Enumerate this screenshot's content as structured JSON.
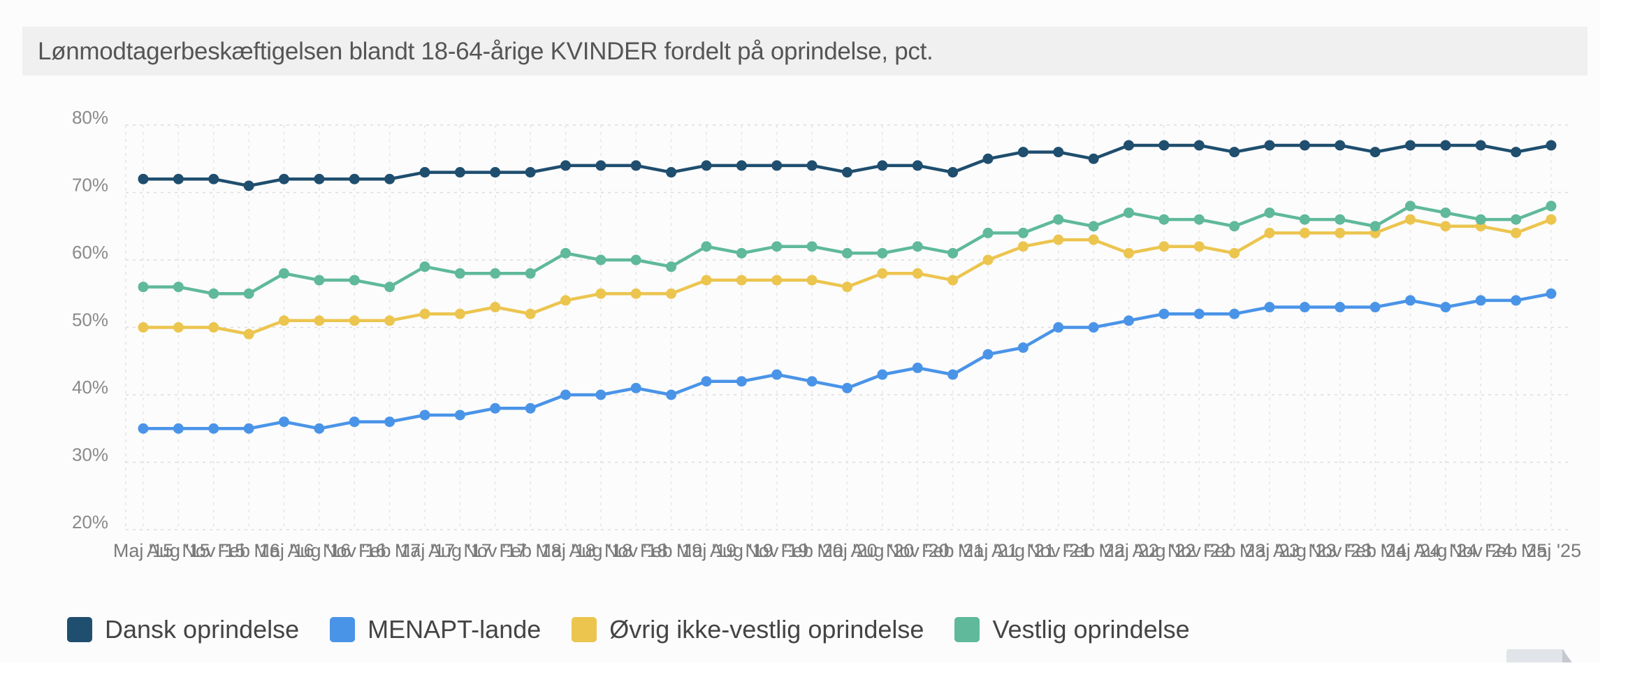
{
  "title": "Lønmodtagerbeskæftigelsen blandt 18-64-årige KVINDER fordelt på oprindelse, pct.",
  "chart_data": {
    "type": "line",
    "title": "Lønmodtagerbeskæftigelsen blandt 18-64-årige KVINDER fordelt på oprindelse, pct.",
    "xlabel": "",
    "ylabel": "",
    "ylim": [
      20,
      80
    ],
    "y_ticks": [
      "20%",
      "30%",
      "40%",
      "50%",
      "60%",
      "70%",
      "80%"
    ],
    "y_tick_values": [
      20,
      30,
      40,
      50,
      60,
      70,
      80
    ],
    "grid": true,
    "legend_position": "bottom-left",
    "categories": [
      "Maj '15",
      "Aug '15",
      "Nov '15",
      "Feb '16",
      "Maj '16",
      "Aug '16",
      "Nov '16",
      "Feb '17",
      "Maj '17",
      "Aug '17",
      "Nov '17",
      "Feb '18",
      "Maj '18",
      "Aug '18",
      "Nov '18",
      "Feb '19",
      "Maj '19",
      "Aug '19",
      "Nov '19",
      "Feb '20",
      "Maj '20",
      "Aug '20",
      "Nov '20",
      "Feb '21",
      "Maj '21",
      "Aug '21",
      "Nov '21",
      "Feb '22",
      "Maj '22",
      "Aug '22",
      "Nov '22",
      "Feb '23",
      "Maj '23",
      "Aug '23",
      "Nov '23",
      "Feb '24",
      "Maj '24",
      "Aug '24",
      "Nov '24",
      "Feb '25",
      "Maj '25"
    ],
    "series": [
      {
        "name": "Dansk oprindelse",
        "color": "#1f4e6e",
        "values": [
          72,
          72,
          72,
          71,
          72,
          72,
          72,
          72,
          73,
          73,
          73,
          73,
          74,
          74,
          74,
          73,
          74,
          74,
          74,
          74,
          73,
          74,
          74,
          73,
          75,
          76,
          76,
          75,
          77,
          77,
          77,
          76,
          77,
          77,
          77,
          76,
          77,
          77,
          77,
          76,
          77
        ]
      },
      {
        "name": "MENAPT-lande",
        "color": "#4a94e8",
        "values": [
          35,
          35,
          35,
          35,
          36,
          35,
          36,
          36,
          37,
          37,
          38,
          38,
          40,
          40,
          41,
          40,
          42,
          42,
          43,
          42,
          41,
          43,
          44,
          43,
          46,
          47,
          50,
          50,
          51,
          52,
          52,
          52,
          53,
          53,
          53,
          53,
          54,
          53,
          54,
          54,
          55
        ]
      },
      {
        "name": "Øvrig ikke-vestlig oprindelse",
        "color": "#ecc54f",
        "values": [
          50,
          50,
          50,
          49,
          51,
          51,
          51,
          51,
          52,
          52,
          53,
          52,
          54,
          55,
          55,
          55,
          57,
          57,
          57,
          57,
          56,
          58,
          58,
          57,
          60,
          62,
          63,
          63,
          61,
          62,
          62,
          61,
          64,
          64,
          64,
          64,
          66,
          65,
          65,
          64,
          66
        ]
      },
      {
        "name": "Vestlig oprindelse",
        "color": "#5fb99a",
        "values": [
          56,
          56,
          55,
          55,
          58,
          57,
          57,
          56,
          59,
          58,
          58,
          58,
          61,
          60,
          60,
          59,
          62,
          61,
          62,
          62,
          61,
          61,
          62,
          61,
          64,
          64,
          66,
          65,
          67,
          66,
          66,
          65,
          67,
          66,
          66,
          65,
          68,
          67,
          66,
          66,
          68
        ]
      }
    ]
  },
  "legend": [
    {
      "label": "Dansk oprindelse",
      "color": "#1f4e6e"
    },
    {
      "label": "MENAPT-lande",
      "color": "#4a94e8"
    },
    {
      "label": "Øvrig ikke-vestlig oprindelse",
      "color": "#ecc54f"
    },
    {
      "label": "Vestlig oprindelse",
      "color": "#5fb99a"
    }
  ]
}
